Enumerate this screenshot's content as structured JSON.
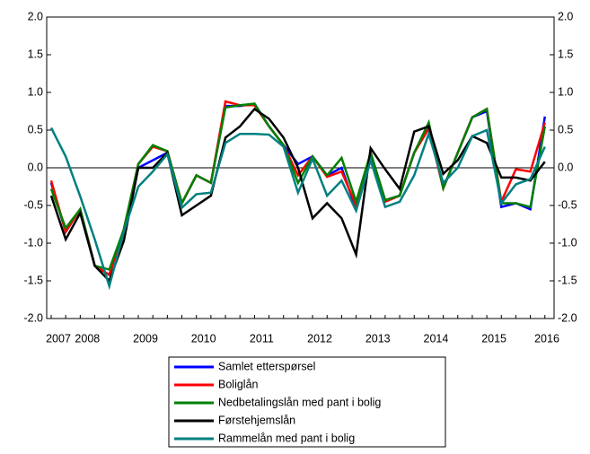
{
  "chart_data": {
    "type": "line",
    "categories": [
      "2007",
      null,
      "2008",
      null,
      null,
      null,
      "2009",
      null,
      null,
      null,
      "2010",
      null,
      null,
      null,
      "2011",
      null,
      null,
      null,
      "2012",
      null,
      null,
      null,
      "2013",
      null,
      null,
      null,
      "2014",
      null,
      null,
      null,
      "2015",
      null,
      null,
      null,
      "2016"
    ],
    "series": [
      {
        "name": "Samlet etterspørsel",
        "color": "#0000ff",
        "values": [
          -0.2,
          -0.85,
          -0.55,
          -1.3,
          -1.42,
          -0.82,
          0.0,
          0.1,
          0.2,
          -0.47,
          -0.1,
          -0.2,
          0.82,
          0.82,
          0.85,
          0.55,
          0.3,
          0.05,
          0.15,
          -0.1,
          0.0,
          -0.55,
          0.2,
          -0.43,
          -0.37,
          0.2,
          0.55,
          -0.27,
          0.2,
          0.67,
          0.75,
          -0.52,
          -0.47,
          -0.55,
          0.68
        ]
      },
      {
        "name": "Boliglån",
        "color": "#ff0000",
        "values": [
          -0.17,
          -0.85,
          -0.55,
          -1.3,
          -1.42,
          -0.82,
          0.05,
          0.28,
          0.22,
          -0.47,
          -0.1,
          -0.2,
          0.88,
          0.83,
          0.83,
          0.55,
          0.3,
          -0.1,
          0.15,
          -0.12,
          -0.05,
          -0.5,
          0.2,
          -0.45,
          -0.37,
          0.2,
          0.52,
          -0.27,
          0.2,
          0.67,
          0.78,
          -0.45,
          -0.02,
          -0.05,
          0.6
        ]
      },
      {
        "name": "Nedbetalingslån med pant i bolig",
        "color": "#008000",
        "values": [
          -0.28,
          -0.8,
          -0.55,
          -1.3,
          -1.35,
          -0.82,
          0.05,
          0.3,
          0.22,
          -0.47,
          -0.1,
          -0.2,
          0.8,
          0.83,
          0.85,
          0.55,
          0.3,
          -0.2,
          0.15,
          -0.1,
          0.13,
          -0.45,
          0.2,
          -0.43,
          -0.37,
          0.2,
          0.6,
          -0.27,
          0.2,
          0.67,
          0.78,
          -0.47,
          -0.47,
          -0.52,
          0.55
        ]
      },
      {
        "name": "Førstehjemslån",
        "color": "#000000",
        "values": [
          -0.37,
          -0.95,
          -0.6,
          -1.3,
          -1.5,
          -0.97,
          0.0,
          0.0,
          0.2,
          -0.63,
          -0.5,
          -0.37,
          0.4,
          0.55,
          0.78,
          0.65,
          0.4,
          0.0,
          -0.67,
          -0.47,
          -0.67,
          -1.15,
          0.26,
          -0.02,
          -0.28,
          0.48,
          0.55,
          -0.08,
          0.1,
          0.42,
          0.33,
          -0.13,
          -0.13,
          -0.17,
          0.08
        ]
      },
      {
        "name": "Rammelån med pant i bolig",
        "color": "#008080",
        "values": [
          0.53,
          0.15,
          -0.38,
          -0.95,
          -1.57,
          -0.85,
          -0.25,
          -0.05,
          0.18,
          -0.53,
          -0.35,
          -0.33,
          0.33,
          0.45,
          0.45,
          0.44,
          0.28,
          -0.33,
          0.12,
          -0.37,
          -0.17,
          -0.57,
          0.1,
          -0.52,
          -0.45,
          -0.1,
          0.45,
          -0.2,
          0.0,
          0.42,
          0.5,
          -0.47,
          -0.22,
          -0.15,
          0.28
        ]
      }
    ],
    "ylim": [
      -2,
      2
    ],
    "yticks": [
      {
        "value": -2,
        "label": "-2.0"
      },
      {
        "value": -1.5,
        "label": "-1.5"
      },
      {
        "value": -1,
        "label": "-1.0"
      },
      {
        "value": -0.5,
        "label": "-0.5"
      },
      {
        "value": 0,
        "label": "0.0"
      },
      {
        "value": 0.5,
        "label": "0.5"
      },
      {
        "value": 1,
        "label": "1.0"
      },
      {
        "value": 1.5,
        "label": "1.5"
      },
      {
        "value": 2,
        "label": "2.0"
      }
    ]
  }
}
